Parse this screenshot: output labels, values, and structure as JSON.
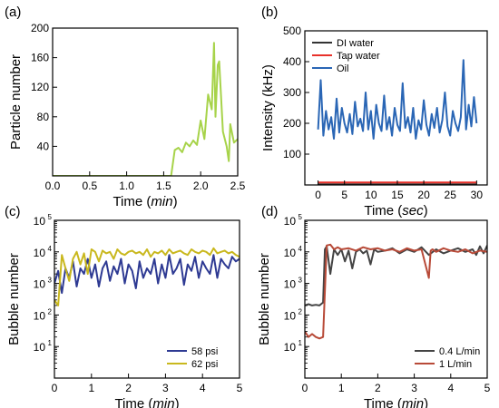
{
  "chart_data": [
    {
      "panel_label": "(a)",
      "type": "line",
      "xlabel_parts": [
        "Time (",
        "min",
        ")"
      ],
      "ylabel": "Particle number",
      "xlim": [
        0,
        2.5
      ],
      "ylim": [
        0,
        200
      ],
      "x_ticks": [
        0.0,
        0.5,
        1.0,
        1.5,
        2.0,
        2.5
      ],
      "x_tick_labels": [
        "0.0",
        "0.5",
        "1.0",
        "1.5",
        "2.0",
        "2.5"
      ],
      "y_ticks": [
        40,
        80,
        120,
        160,
        200
      ],
      "y_tick_labels": [
        "40",
        "80",
        "120",
        "160",
        "200"
      ],
      "series": [
        {
          "color": "#a7d34a",
          "x": [
            0,
            0.5,
            1.0,
            1.5,
            1.6,
            1.65,
            1.7,
            1.75,
            1.8,
            1.85,
            1.9,
            1.95,
            2.0,
            2.05,
            2.1,
            2.15,
            2.18,
            2.2,
            2.23,
            2.25,
            2.3,
            2.35,
            2.38,
            2.4,
            2.45,
            2.5
          ],
          "y": [
            0,
            0,
            0,
            0,
            0,
            35,
            38,
            32,
            45,
            40,
            48,
            42,
            75,
            50,
            110,
            90,
            180,
            80,
            150,
            155,
            60,
            40,
            20,
            70,
            45,
            50
          ]
        }
      ]
    },
    {
      "panel_label": "(b)",
      "type": "line",
      "xlabel_parts": [
        "Time (",
        "sec",
        ")"
      ],
      "ylabel": "Intensity (kHz)",
      "xlim": [
        -2.5,
        32
      ],
      "ylim": [
        0,
        500
      ],
      "x_ticks": [
        0,
        5,
        10,
        15,
        20,
        25,
        30
      ],
      "x_tick_labels": [
        "0",
        "5",
        "10",
        "15",
        "20",
        "25",
        "30"
      ],
      "y_ticks": [
        100,
        200,
        300,
        400,
        500
      ],
      "y_tick_labels": [
        "100",
        "200",
        "300",
        "400",
        "500"
      ],
      "legend": {
        "position": "top-left",
        "entries": [
          "DI water",
          "Tap water",
          "Oil"
        ]
      },
      "series": [
        {
          "name": "DI water",
          "color": "#333333",
          "x": [
            0,
            30
          ],
          "y": [
            2,
            2
          ]
        },
        {
          "name": "Tap water",
          "color": "#e8312a",
          "x": [
            0,
            30
          ],
          "y": [
            8,
            8
          ]
        },
        {
          "name": "Oil",
          "color": "#2a66b5",
          "x": [
            0,
            0.5,
            1,
            1.5,
            2,
            2.5,
            3,
            3.5,
            4,
            4.5,
            5,
            5.5,
            6,
            6.5,
            7,
            7.5,
            8,
            8.5,
            9,
            9.5,
            10,
            10.5,
            11,
            11.5,
            12,
            12.5,
            13,
            13.5,
            14,
            14.5,
            15,
            15.5,
            16,
            16.5,
            17,
            17.5,
            18,
            18.5,
            19,
            19.5,
            20,
            20.5,
            21,
            21.5,
            22,
            22.5,
            23,
            23.5,
            24,
            24.5,
            25,
            25.5,
            26,
            26.5,
            27,
            27.5,
            28,
            28.5,
            29,
            29.5,
            30
          ],
          "y": [
            180,
            340,
            160,
            240,
            180,
            220,
            150,
            280,
            170,
            250,
            200,
            170,
            230,
            165,
            270,
            190,
            215,
            175,
            300,
            180,
            240,
            150,
            260,
            200,
            175,
            290,
            180,
            220,
            160,
            250,
            195,
            175,
            330,
            185,
            220,
            170,
            250,
            150,
            210,
            180,
            275,
            195,
            160,
            230,
            185,
            250,
            170,
            210,
            300,
            190,
            160,
            240,
            200,
            175,
            220,
            405,
            180,
            260,
            190,
            285,
            200
          ]
        }
      ]
    },
    {
      "panel_label": "(c)",
      "type": "line",
      "log_y": true,
      "xlabel_parts": [
        "Time (",
        "min",
        ")"
      ],
      "ylabel": "Bubble number",
      "xlim": [
        0,
        5
      ],
      "ylim": [
        1,
        100000
      ],
      "x_ticks": [
        0,
        1,
        2,
        3,
        4,
        5
      ],
      "x_tick_labels": [
        "0",
        "1",
        "2",
        "3",
        "4",
        "5"
      ],
      "y_ticks": [
        10,
        100,
        1000,
        10000,
        100000
      ],
      "y_tick_labels": [
        "10",
        "10",
        "10",
        "10",
        "10"
      ],
      "y_tick_exponents": [
        "1",
        "2",
        "3",
        "4",
        "5"
      ],
      "legend": {
        "position": "bottom-right",
        "entries": [
          "58 psi",
          "62 psi"
        ]
      },
      "series": [
        {
          "name": "58 psi",
          "color": "#2e3a93",
          "x": [
            0,
            0.1,
            0.2,
            0.3,
            0.4,
            0.5,
            0.6,
            0.7,
            0.8,
            0.9,
            1.0,
            1.1,
            1.2,
            1.3,
            1.4,
            1.5,
            1.6,
            1.7,
            1.8,
            1.9,
            2.0,
            2.1,
            2.2,
            2.3,
            2.4,
            2.5,
            2.6,
            2.7,
            2.8,
            2.9,
            3.0,
            3.1,
            3.2,
            3.3,
            3.4,
            3.5,
            3.6,
            3.7,
            3.8,
            3.9,
            4.0,
            4.1,
            4.2,
            4.3,
            4.4,
            4.5,
            4.6,
            4.7,
            4.8,
            4.9,
            5.0
          ],
          "y": [
            1000,
            2500,
            500,
            3000,
            1500,
            5000,
            800,
            3000,
            2000,
            6000,
            1500,
            4000,
            800,
            3000,
            5000,
            1200,
            3500,
            2000,
            6000,
            1000,
            4000,
            2500,
            700,
            5000,
            1500,
            3000,
            2000,
            6000,
            1000,
            4000,
            1500,
            8000,
            2000,
            3000,
            6000,
            900,
            4000,
            2500,
            7000,
            1500,
            5000,
            3000,
            2000,
            8000,
            1500,
            6000,
            4000,
            3000,
            7000,
            5000,
            6000
          ]
        },
        {
          "name": "62 psi",
          "color": "#c9b81e",
          "x": [
            0,
            0.1,
            0.2,
            0.3,
            0.4,
            0.5,
            0.6,
            0.7,
            0.8,
            0.9,
            1.0,
            1.1,
            1.2,
            1.3,
            1.4,
            1.5,
            1.6,
            1.7,
            1.8,
            1.9,
            2.0,
            2.1,
            2.2,
            2.3,
            2.4,
            2.5,
            2.6,
            2.7,
            2.8,
            2.9,
            3.0,
            3.1,
            3.2,
            3.3,
            3.4,
            3.5,
            3.6,
            3.7,
            3.8,
            3.9,
            4.0,
            4.1,
            4.2,
            4.3,
            4.4,
            4.5,
            4.6,
            4.7,
            4.8,
            4.9,
            5.0
          ],
          "y": [
            300,
            200,
            8000,
            3000,
            1200,
            6000,
            10000,
            4000,
            9000,
            2000,
            12000,
            10000,
            5000,
            11000,
            9000,
            10000,
            6000,
            12000,
            9000,
            8000,
            10000,
            11000,
            9000,
            10000,
            8000,
            12000,
            7000,
            10000,
            9000,
            11000,
            8000,
            12000,
            9000,
            10000,
            11000,
            9000,
            8000,
            12000,
            10000,
            9000,
            11000,
            10000,
            8000,
            13000,
            9000,
            10000,
            11000,
            9000,
            10000,
            8000,
            7000
          ]
        }
      ]
    },
    {
      "panel_label": "(d)",
      "type": "line",
      "log_y": true,
      "xlabel_parts": [
        "Time (",
        "min",
        ")"
      ],
      "ylabel": "Bubble number",
      "xlim": [
        0,
        5
      ],
      "ylim": [
        1,
        100000
      ],
      "x_ticks": [
        0,
        1,
        2,
        3,
        4,
        5
      ],
      "x_tick_labels": [
        "0",
        "1",
        "2",
        "3",
        "4",
        "5"
      ],
      "y_ticks": [
        10,
        100,
        1000,
        10000,
        100000
      ],
      "y_tick_labels": [
        "10",
        "10",
        "10",
        "10",
        "10"
      ],
      "y_tick_exponents": [
        "1",
        "2",
        "3",
        "4",
        "5"
      ],
      "legend": {
        "position": "bottom-right",
        "entries": [
          "0.4 L/min",
          "1 L/min"
        ]
      },
      "series": [
        {
          "name": "0.4 L/min",
          "color": "#444444",
          "x": [
            0,
            0.1,
            0.2,
            0.3,
            0.4,
            0.5,
            0.55,
            0.6,
            0.7,
            0.8,
            0.9,
            1.0,
            1.1,
            1.2,
            1.3,
            1.4,
            1.5,
            1.6,
            1.7,
            1.8,
            1.9,
            2.0,
            2.2,
            2.4,
            2.6,
            2.8,
            3.0,
            3.2,
            3.4,
            3.6,
            3.8,
            4.0,
            4.2,
            4.4,
            4.6,
            4.7,
            4.8,
            4.9,
            5.0
          ],
          "y": [
            200,
            220,
            200,
            210,
            200,
            250,
            12000,
            15000,
            2000,
            12000,
            8000,
            12000,
            5000,
            11000,
            3000,
            10000,
            12000,
            9000,
            11000,
            4000,
            12000,
            10000,
            11000,
            13000,
            9000,
            12000,
            10000,
            14000,
            8000,
            12000,
            9000,
            11000,
            13000,
            10000,
            12000,
            8000,
            15000,
            9000,
            16000
          ]
        },
        {
          "name": "1 L/min",
          "color": "#b84a38",
          "x": [
            0,
            0.1,
            0.2,
            0.3,
            0.4,
            0.5,
            0.6,
            0.7,
            0.8,
            0.9,
            1.0,
            1.2,
            1.4,
            1.6,
            1.8,
            2.0,
            2.2,
            2.4,
            2.6,
            2.8,
            3.0,
            3.2,
            3.4,
            3.45,
            3.5,
            3.6,
            3.8,
            4.0,
            4.2,
            4.4,
            4.6,
            4.8,
            5.0
          ],
          "y": [
            30,
            20,
            25,
            20,
            18,
            20,
            16000,
            17000,
            12000,
            14000,
            12000,
            13000,
            11000,
            14000,
            12000,
            13000,
            11000,
            12000,
            10000,
            13000,
            11000,
            12000,
            1500,
            11000,
            12000,
            10000,
            13000,
            11000,
            10000,
            12000,
            9000,
            11000,
            10000
          ]
        }
      ]
    }
  ]
}
